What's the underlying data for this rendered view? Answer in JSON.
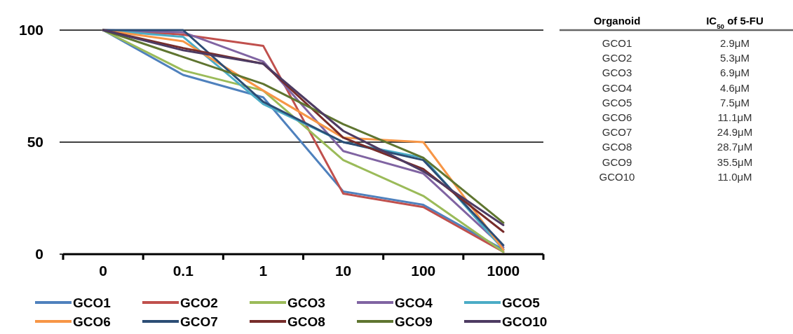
{
  "chart_data": [
    {
      "type": "line",
      "categories": [
        "0",
        "0.1",
        "1",
        "10",
        "100",
        "1000"
      ],
      "ylim": [
        0,
        100
      ],
      "yticks": [
        0,
        50,
        100
      ],
      "grid": "y",
      "legend": "bottom",
      "marker": "none",
      "line_style": "solid",
      "series": [
        {
          "name": "GCO1",
          "color": "#4f81bd",
          "values": [
            100,
            80,
            70,
            28,
            22,
            2
          ]
        },
        {
          "name": "GCO2",
          "color": "#c0504d",
          "values": [
            100,
            98,
            93,
            27,
            21,
            1
          ]
        },
        {
          "name": "GCO3",
          "color": "#9bbb59",
          "values": [
            100,
            82,
            73,
            42,
            26,
            1
          ]
        },
        {
          "name": "GCO4",
          "color": "#8064a2",
          "values": [
            100,
            99,
            86,
            46,
            36,
            3
          ]
        },
        {
          "name": "GCO5",
          "color": "#4bacc6",
          "values": [
            100,
            97,
            67,
            50,
            43,
            2
          ]
        },
        {
          "name": "GCO6",
          "color": "#f79646",
          "values": [
            100,
            95,
            73,
            52,
            50,
            2
          ]
        },
        {
          "name": "GCO7",
          "color": "#2c4d75",
          "values": [
            100,
            100,
            68,
            50,
            42,
            4
          ]
        },
        {
          "name": "GCO8",
          "color": "#772c2a",
          "values": [
            100,
            92,
            85,
            52,
            38,
            10
          ]
        },
        {
          "name": "GCO9",
          "color": "#5f7530",
          "values": [
            100,
            88,
            76,
            58,
            43,
            14
          ]
        },
        {
          "name": "GCO10",
          "color": "#4d3b62",
          "values": [
            100,
            91,
            85,
            55,
            37,
            13
          ]
        }
      ]
    },
    {
      "type": "other",
      "xlabel": "Organoid",
      "ylabel": "IC$_{50}$ of 5-FU",
      "categories": [
        "GCO1",
        "GCO2",
        "GCO3",
        "GCO4",
        "GCO5",
        "GCO6",
        "GCO7",
        "GCO8",
        "GCO9",
        "GCO10"
      ],
      "value_labels": [
        "2.9μM",
        "5.3μM",
        "6.9μM",
        "4.6μM",
        "7.5μM",
        "11.1μM",
        "24.9μM",
        "28.7μM",
        "35.5μM",
        "11.0μM"
      ]
    }
  ]
}
